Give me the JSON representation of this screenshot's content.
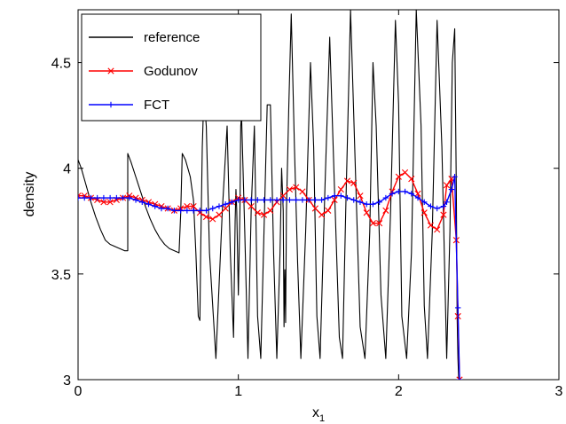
{
  "chart_data": {
    "type": "line",
    "title": "",
    "xlabel": "x",
    "xlabel_subscript": "1",
    "ylabel": "density",
    "xlim": [
      0,
      3
    ],
    "ylim": [
      3,
      4.75
    ],
    "xticks": [
      0,
      1,
      2,
      3
    ],
    "xtick_labels": [
      "0",
      "1",
      "2",
      "3"
    ],
    "yticks": [
      3,
      3.5,
      4,
      4.5
    ],
    "ytick_labels": [
      "3",
      "3.5",
      "4",
      "4.5"
    ],
    "grid": false,
    "legend_position": "top-left",
    "series": [
      {
        "name": "reference",
        "color": "#000000",
        "marker": "none",
        "x": [
          0.0,
          0.02,
          0.05,
          0.08,
          0.11,
          0.14,
          0.17,
          0.2,
          0.23,
          0.26,
          0.29,
          0.31,
          0.31,
          0.33,
          0.36,
          0.39,
          0.42,
          0.45,
          0.48,
          0.51,
          0.54,
          0.57,
          0.6,
          0.63,
          0.64,
          0.65,
          0.67,
          0.7,
          0.72,
          0.735,
          0.75,
          0.76,
          0.765,
          0.775,
          0.785,
          0.8,
          0.82,
          0.86,
          0.9,
          0.93,
          0.95,
          0.97,
          0.98,
          0.985,
          0.99,
          1.0,
          1.01,
          1.015,
          1.02,
          1.04,
          1.06,
          1.08,
          1.1,
          1.12,
          1.14,
          1.16,
          1.18,
          1.2,
          1.22,
          1.24,
          1.26,
          1.27,
          1.28,
          1.285,
          1.29,
          1.295,
          1.3,
          1.315,
          1.33,
          1.35,
          1.37,
          1.39,
          1.42,
          1.45,
          1.47,
          1.49,
          1.51,
          1.54,
          1.57,
          1.6,
          1.63,
          1.65,
          1.67,
          1.7,
          1.73,
          1.76,
          1.79,
          1.82,
          1.84,
          1.86,
          1.89,
          1.92,
          1.95,
          1.98,
          2.0,
          2.02,
          2.05,
          2.08,
          2.11,
          2.14,
          2.16,
          2.18,
          2.21,
          2.24,
          2.27,
          2.3,
          2.32,
          2.335,
          2.35,
          2.36,
          2.365,
          2.37,
          2.375,
          2.38
        ],
        "y": [
          4.04,
          4.0,
          3.92,
          3.84,
          3.77,
          3.71,
          3.66,
          3.64,
          3.63,
          3.62,
          3.61,
          3.61,
          4.07,
          4.03,
          3.96,
          3.89,
          3.82,
          3.76,
          3.71,
          3.67,
          3.64,
          3.62,
          3.61,
          3.6,
          3.78,
          4.07,
          4.04,
          3.96,
          3.85,
          3.6,
          3.3,
          3.28,
          3.6,
          4.1,
          4.35,
          4.2,
          3.6,
          3.1,
          3.8,
          4.2,
          3.6,
          3.2,
          3.75,
          3.9,
          3.8,
          3.4,
          3.8,
          4.2,
          4.25,
          3.7,
          3.1,
          3.8,
          4.2,
          3.3,
          3.1,
          3.7,
          4.3,
          4.3,
          3.6,
          3.1,
          3.6,
          4.0,
          3.8,
          3.25,
          3.52,
          3.27,
          3.8,
          4.3,
          4.73,
          4.1,
          3.55,
          3.1,
          3.7,
          4.5,
          4.1,
          3.3,
          3.1,
          3.9,
          4.62,
          3.9,
          3.2,
          3.1,
          3.8,
          4.75,
          4.0,
          3.25,
          3.1,
          3.7,
          4.5,
          4.2,
          3.4,
          3.1,
          3.8,
          4.7,
          4.3,
          3.3,
          3.1,
          3.6,
          4.75,
          4.2,
          3.35,
          3.1,
          3.7,
          4.7,
          4.1,
          3.1,
          3.7,
          4.5,
          4.66,
          3.9,
          3.3,
          3.1,
          3.0,
          3.0
        ]
      },
      {
        "name": "Godunov",
        "color": "#ff0000",
        "marker": "x",
        "x": [
          0.0,
          0.04,
          0.08,
          0.12,
          0.16,
          0.2,
          0.24,
          0.28,
          0.32,
          0.36,
          0.4,
          0.44,
          0.48,
          0.52,
          0.56,
          0.6,
          0.64,
          0.68,
          0.72,
          0.76,
          0.8,
          0.84,
          0.88,
          0.92,
          0.96,
          1.0,
          1.04,
          1.08,
          1.12,
          1.16,
          1.2,
          1.24,
          1.28,
          1.32,
          1.36,
          1.4,
          1.44,
          1.48,
          1.52,
          1.56,
          1.6,
          1.64,
          1.68,
          1.72,
          1.76,
          1.8,
          1.84,
          1.88,
          1.92,
          1.96,
          2.0,
          2.04,
          2.08,
          2.12,
          2.16,
          2.2,
          2.24,
          2.28,
          2.3,
          2.33,
          2.36,
          2.37,
          2.38
        ],
        "y": [
          3.87,
          3.87,
          3.86,
          3.85,
          3.84,
          3.84,
          3.85,
          3.86,
          3.87,
          3.86,
          3.85,
          3.84,
          3.83,
          3.82,
          3.81,
          3.8,
          3.81,
          3.82,
          3.82,
          3.79,
          3.77,
          3.76,
          3.78,
          3.81,
          3.84,
          3.86,
          3.85,
          3.82,
          3.79,
          3.78,
          3.8,
          3.84,
          3.87,
          3.9,
          3.91,
          3.89,
          3.85,
          3.81,
          3.78,
          3.8,
          3.85,
          3.9,
          3.94,
          3.93,
          3.87,
          3.79,
          3.74,
          3.74,
          3.8,
          3.89,
          3.96,
          3.98,
          3.95,
          3.88,
          3.79,
          3.73,
          3.71,
          3.78,
          3.92,
          3.95,
          3.66,
          3.3,
          3.0
        ]
      },
      {
        "name": "FCT",
        "color": "#0000ff",
        "marker": "+",
        "x": [
          0.0,
          0.04,
          0.08,
          0.12,
          0.16,
          0.2,
          0.24,
          0.28,
          0.32,
          0.36,
          0.4,
          0.44,
          0.48,
          0.52,
          0.56,
          0.6,
          0.64,
          0.68,
          0.72,
          0.76,
          0.8,
          0.84,
          0.88,
          0.92,
          0.96,
          1.0,
          1.04,
          1.08,
          1.12,
          1.16,
          1.2,
          1.24,
          1.28,
          1.32,
          1.36,
          1.4,
          1.44,
          1.48,
          1.52,
          1.56,
          1.6,
          1.64,
          1.68,
          1.72,
          1.76,
          1.8,
          1.84,
          1.88,
          1.92,
          1.96,
          2.0,
          2.04,
          2.08,
          2.12,
          2.16,
          2.2,
          2.24,
          2.28,
          2.3,
          2.33,
          2.35,
          2.37,
          2.38
        ],
        "y": [
          3.86,
          3.86,
          3.86,
          3.86,
          3.86,
          3.86,
          3.86,
          3.86,
          3.86,
          3.85,
          3.84,
          3.83,
          3.82,
          3.81,
          3.81,
          3.8,
          3.8,
          3.8,
          3.8,
          3.8,
          3.8,
          3.81,
          3.82,
          3.83,
          3.84,
          3.85,
          3.85,
          3.85,
          3.85,
          3.85,
          3.85,
          3.85,
          3.85,
          3.85,
          3.85,
          3.85,
          3.85,
          3.85,
          3.85,
          3.86,
          3.87,
          3.87,
          3.86,
          3.85,
          3.84,
          3.83,
          3.83,
          3.84,
          3.86,
          3.88,
          3.89,
          3.89,
          3.88,
          3.86,
          3.84,
          3.82,
          3.81,
          3.82,
          3.84,
          3.9,
          3.96,
          3.34,
          3.0
        ]
      }
    ]
  }
}
